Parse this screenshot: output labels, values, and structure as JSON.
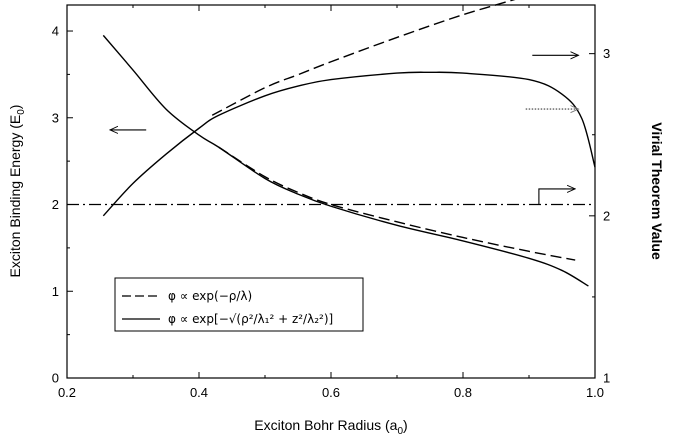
{
  "chart_data": {
    "type": "line",
    "xlabel_text": "Exciton Bohr Radius (a",
    "xlabel_sub": "0",
    "ylabel_left_text": "Exciton Binding Energy (E",
    "ylabel_left_sub": "0",
    "ylabel_right": "Virial Theorem Value",
    "xlim": [
      0.2,
      1.0
    ],
    "ylim_left": [
      0,
      4.3
    ],
    "ylim_right": [
      1,
      3.3
    ],
    "x_ticks": [
      "0.2",
      "0.4",
      "0.6",
      "0.8",
      "1.0"
    ],
    "y_left_ticks": [
      "0",
      "1",
      "2",
      "3",
      "4"
    ],
    "y_right_ticks": [
      "1",
      "2",
      "3"
    ],
    "grid": false,
    "legend": {
      "placement": "lower-left",
      "entries": [
        {
          "label": "φ ∝  exp(−ρ/λ)",
          "style": "dashed"
        },
        {
          "label": "φ ∝  exp[−√(ρ²/λ₁² + z²/λ₂²)]",
          "style": "solid"
        }
      ]
    },
    "reference_line": {
      "y": 2,
      "axis": "left",
      "style": "dash-dot"
    },
    "series": [
      {
        "id": "binding-solid",
        "style": "solid",
        "axis": "left",
        "x": [
          0.255,
          0.3,
          0.35,
          0.4,
          0.43,
          0.5,
          0.55,
          0.6,
          0.7,
          0.8,
          0.9,
          0.95,
          0.99
        ],
        "y": [
          3.95,
          3.55,
          3.1,
          2.8,
          2.66,
          2.3,
          2.12,
          1.98,
          1.76,
          1.58,
          1.38,
          1.24,
          1.06
        ]
      },
      {
        "id": "binding-dashed",
        "style": "dashed",
        "axis": "left",
        "x": [
          0.43,
          0.5,
          0.55,
          0.6,
          0.7,
          0.8,
          0.9,
          0.97
        ],
        "y": [
          2.66,
          2.32,
          2.14,
          2.0,
          1.8,
          1.62,
          1.46,
          1.36
        ]
      },
      {
        "id": "virial-solid",
        "style": "solid",
        "axis": "right",
        "x": [
          0.255,
          0.3,
          0.35,
          0.4,
          0.43,
          0.5,
          0.55,
          0.6,
          0.7,
          0.75,
          0.8,
          0.9,
          0.95,
          0.98,
          1.0
        ],
        "y": [
          2.0,
          2.2,
          2.38,
          2.54,
          2.62,
          2.74,
          2.8,
          2.84,
          2.88,
          2.885,
          2.88,
          2.84,
          2.75,
          2.6,
          2.3
        ]
      },
      {
        "id": "virial-dashed",
        "style": "dashed",
        "axis": "right",
        "x": [
          0.42,
          0.5,
          0.55,
          0.6,
          0.7,
          0.8,
          0.9,
          0.97
        ],
        "y": [
          2.62,
          2.79,
          2.87,
          2.95,
          3.1,
          3.24,
          3.36,
          3.45
        ]
      }
    ],
    "arrows": [
      {
        "id": "arrow-left-axis",
        "direction": "left",
        "style": "solid",
        "x": [
          0.32,
          0.265
        ],
        "y": 2.86,
        "axis": "left"
      },
      {
        "id": "arrow-right-dashed",
        "direction": "right",
        "style": "solid",
        "x": [
          0.905,
          0.975
        ],
        "y": 3.72,
        "axis": "left"
      },
      {
        "id": "arrow-right-dotted",
        "direction": "right",
        "style": "dotted",
        "x": [
          0.895,
          0.975
        ],
        "y": 3.1,
        "axis": "left"
      },
      {
        "id": "arrow-right-bent",
        "direction": "right",
        "style": "solid",
        "x": [
          0.915,
          0.97
        ],
        "y": 2.18,
        "y_start": 2.0,
        "axis": "left"
      }
    ]
  }
}
